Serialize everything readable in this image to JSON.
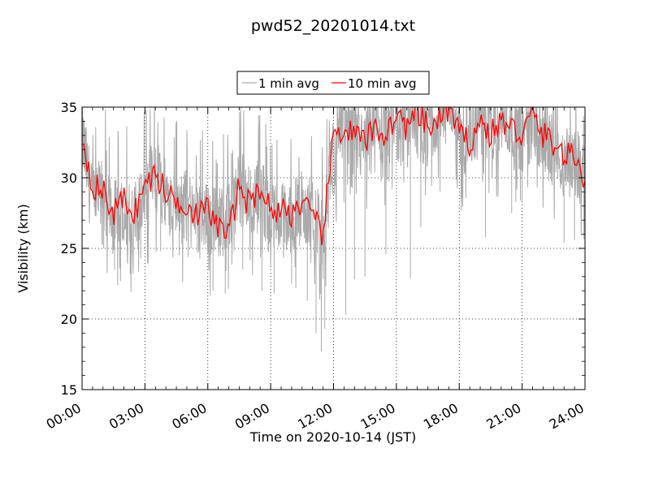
{
  "chart_data": {
    "type": "line",
    "title": "pwd52_20201014.txt",
    "xlabel": "Time on 2020-10-14 (JST)",
    "ylabel": "Visibility (km)",
    "xlim": [
      "00:00",
      "24:00"
    ],
    "ylim": [
      15,
      35
    ],
    "x_ticks": [
      "00:00",
      "03:00",
      "06:00",
      "09:00",
      "12:00",
      "15:00",
      "18:00",
      "21:00",
      "24:00"
    ],
    "y_ticks": [
      "15",
      "20",
      "25",
      "30",
      "35"
    ],
    "grid": true,
    "legend_position": "top-center",
    "x": [
      "00:00",
      "00:30",
      "01:00",
      "01:30",
      "02:00",
      "02:30",
      "03:00",
      "03:30",
      "04:00",
      "04:30",
      "05:00",
      "05:30",
      "06:00",
      "06:30",
      "07:00",
      "07:30",
      "08:00",
      "08:30",
      "09:00",
      "09:30",
      "10:00",
      "10:30",
      "11:00",
      "11:30",
      "12:00",
      "12:30",
      "13:00",
      "13:30",
      "14:00",
      "14:30",
      "15:00",
      "15:30",
      "16:00",
      "16:30",
      "17:00",
      "17:30",
      "18:00",
      "18:30",
      "19:00",
      "19:30",
      "20:00",
      "20:30",
      "21:00",
      "21:30",
      "22:00",
      "22:30",
      "23:00",
      "23:30",
      "24:00"
    ],
    "series": [
      {
        "name": "1 min avg",
        "color": "#aaaaaa",
        "values": [
          33.0,
          28.0,
          29.0,
          27.0,
          28.0,
          27.0,
          29.0,
          30.0,
          29.0,
          28.0,
          28.0,
          27.0,
          27.0,
          27.0,
          27.0,
          29.5,
          28.0,
          29.0,
          27.0,
          27.0,
          27.0,
          28.0,
          27.0,
          26.0,
          32.0,
          33.0,
          33.0,
          32.0,
          33.0,
          33.0,
          34.0,
          33.0,
          34.0,
          33.0,
          34.0,
          35.0,
          33.0,
          33.0,
          34.0,
          34.0,
          34.0,
          34.0,
          33.0,
          34.0,
          33.0,
          32.0,
          31.0,
          31.0,
          30.0
        ],
        "spikes": [
          {
            "x": "01:02",
            "y": 25.0
          },
          {
            "x": "01:33",
            "y": 23.5
          },
          {
            "x": "02:10",
            "y": 24.0
          },
          {
            "x": "02:48",
            "y": 24.3
          },
          {
            "x": "03:45",
            "y": 24.8
          },
          {
            "x": "04:38",
            "y": 24.5
          },
          {
            "x": "05:30",
            "y": 24.7
          },
          {
            "x": "06:15",
            "y": 22.0
          },
          {
            "x": "06:50",
            "y": 21.8
          },
          {
            "x": "07:40",
            "y": 23.5
          },
          {
            "x": "08:35",
            "y": 22.0
          },
          {
            "x": "09:10",
            "y": 21.8
          },
          {
            "x": "10:00",
            "y": 22.5
          },
          {
            "x": "10:45",
            "y": 21.3
          },
          {
            "x": "11:10",
            "y": 19.0
          },
          {
            "x": "11:25",
            "y": 17.7
          },
          {
            "x": "11:35",
            "y": 19.3
          },
          {
            "x": "12:35",
            "y": 20.3
          },
          {
            "x": "13:00",
            "y": 22.8
          },
          {
            "x": "13:30",
            "y": 23.0
          },
          {
            "x": "14:30",
            "y": 24.6
          },
          {
            "x": "15:40",
            "y": 22.9
          },
          {
            "x": "16:10",
            "y": 26.5
          },
          {
            "x": "17:05",
            "y": 29.0
          },
          {
            "x": "18:05",
            "y": 28.3
          },
          {
            "x": "19:15",
            "y": 25.8
          },
          {
            "x": "20:30",
            "y": 27.5
          },
          {
            "x": "21:00",
            "y": 28.2
          },
          {
            "x": "23:00",
            "y": 25.4
          },
          {
            "x": "23:30",
            "y": 25.6
          }
        ]
      },
      {
        "name": "10 min avg",
        "color": "#ff0000",
        "values": [
          33.0,
          29.5,
          29.0,
          27.5,
          28.5,
          27.5,
          29.5,
          30.2,
          29.0,
          28.3,
          28.2,
          27.3,
          27.8,
          26.5,
          26.0,
          29.5,
          28.0,
          29.5,
          27.6,
          27.8,
          27.5,
          28.3,
          27.0,
          26.0,
          33.0,
          33.5,
          33.0,
          32.5,
          33.5,
          33.0,
          34.5,
          33.5,
          34.5,
          33.5,
          34.0,
          35.0,
          33.0,
          32.5,
          34.0,
          33.0,
          34.0,
          33.5,
          33.0,
          34.5,
          33.0,
          32.5,
          31.5,
          31.5,
          30.0
        ]
      }
    ]
  }
}
